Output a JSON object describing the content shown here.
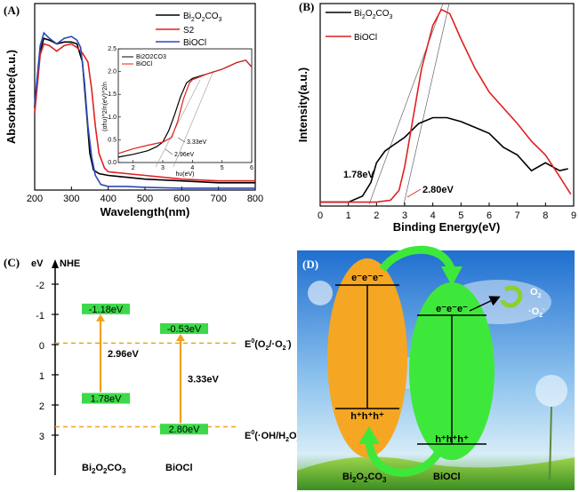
{
  "panels": {
    "A": "(A)",
    "B": "(B)",
    "C": "(C)",
    "D": "(D)"
  },
  "colors": {
    "bi2o2co3": "#000000",
    "s2": "#e02020",
    "biocl": "#2b49b8",
    "band_green": "#3dd94a",
    "dash_orange": "#f0a020",
    "oval_orange": "#f5a623",
    "oval_green": "#3ee83a"
  },
  "chart_data": [
    {
      "id": "A",
      "type": "line",
      "xlabel": "Wavelength(nm)",
      "ylabel": "Absorbance(a.u.)",
      "xlim": [
        200,
        800
      ],
      "xticks": [
        "200",
        "300",
        "400",
        "500",
        "600",
        "700",
        "800"
      ],
      "legend": [
        {
          "label_parts": [
            "Bi",
            "2",
            "O",
            "2",
            "CO",
            "3"
          ],
          "color_key": "bi2o2co3"
        },
        {
          "label": "S2",
          "color_key": "s2"
        },
        {
          "label": "BiOCl",
          "color_key": "biocl"
        }
      ],
      "series": [
        {
          "name": "Bi2O2CO3",
          "x": [
            200,
            215,
            225,
            240,
            260,
            280,
            300,
            315,
            330,
            340,
            350,
            360,
            375,
            400,
            450,
            500,
            600,
            700,
            800
          ],
          "y": [
            0.45,
            0.76,
            0.83,
            0.82,
            0.8,
            0.81,
            0.81,
            0.8,
            0.7,
            0.45,
            0.2,
            0.11,
            0.09,
            0.08,
            0.07,
            0.06,
            0.05,
            0.04,
            0.04
          ]
        },
        {
          "name": "S2",
          "x": [
            200,
            215,
            225,
            240,
            260,
            280,
            300,
            315,
            330,
            345,
            355,
            365,
            375,
            390,
            400,
            450,
            500,
            600,
            700,
            800
          ],
          "y": [
            0.42,
            0.74,
            0.8,
            0.79,
            0.76,
            0.79,
            0.8,
            0.78,
            0.75,
            0.7,
            0.55,
            0.35,
            0.2,
            0.12,
            0.1,
            0.09,
            0.08,
            0.06,
            0.05,
            0.05
          ]
        },
        {
          "name": "BiOCl",
          "x": [
            200,
            215,
            225,
            240,
            260,
            280,
            300,
            315,
            325,
            335,
            345,
            355,
            365,
            380,
            400,
            450,
            500,
            600,
            700,
            800
          ],
          "y": [
            0.47,
            0.79,
            0.86,
            0.83,
            0.8,
            0.83,
            0.84,
            0.82,
            0.78,
            0.6,
            0.35,
            0.18,
            0.08,
            0.03,
            0.02,
            0.02,
            0.015,
            0.01,
            0.01,
            0.01
          ]
        }
      ],
      "inset": {
        "xlabel": "hυ(eV)",
        "ylabel": "(αhυ)^2/n(eV)^2/n",
        "xlim": [
          1.5,
          6
        ],
        "ylim": [
          0,
          2.5
        ],
        "xticks": [
          "2",
          "3",
          "4",
          "5",
          "6"
        ],
        "yticks": [
          "0.0",
          "0.5",
          "1.0",
          "1.5",
          "2.0",
          "2.5"
        ],
        "legend": [
          "Bi2O2CO3",
          "BiOCl"
        ],
        "annotations": [
          "3.33eV",
          "2.96eV"
        ],
        "series": [
          {
            "name": "Bi2O2CO3",
            "x": [
              1.5,
              2.0,
              2.5,
              2.8,
              3.0,
              3.2,
              3.4,
              3.6,
              3.8,
              4.0,
              4.5,
              5.0,
              5.5,
              5.8,
              6.0
            ],
            "y": [
              0.12,
              0.18,
              0.26,
              0.35,
              0.45,
              0.7,
              1.05,
              1.45,
              1.75,
              1.85,
              1.95,
              2.05,
              2.2,
              2.25,
              2.1
            ]
          },
          {
            "name": "BiOCl",
            "x": [
              1.5,
              2.0,
              2.5,
              3.0,
              3.3,
              3.5,
              3.7,
              3.9,
              4.0,
              4.5,
              5.0,
              5.5,
              5.8,
              6.0
            ],
            "y": [
              0.2,
              0.3,
              0.38,
              0.45,
              0.55,
              0.9,
              1.4,
              1.75,
              1.82,
              1.95,
              2.05,
              2.2,
              2.25,
              2.1
            ]
          }
        ]
      }
    },
    {
      "id": "B",
      "type": "line",
      "xlabel": "Binding Energy(eV)",
      "ylabel": "Intensity(a.u.)",
      "xlim": [
        0,
        9
      ],
      "xticks": [
        "0",
        "1",
        "2",
        "3",
        "4",
        "5",
        "6",
        "7",
        "8",
        "9"
      ],
      "legend": [
        {
          "label_parts": [
            "Bi",
            "2",
            "O",
            "2",
            "CO",
            "3"
          ],
          "color_key": "bi2o2co3"
        },
        {
          "label": "BiOCl",
          "color_key": "s2"
        }
      ],
      "annotations": [
        "1.78eV",
        "2.80eV"
      ],
      "series": [
        {
          "name": "Bi2O2CO3",
          "x": [
            0,
            1.0,
            1.5,
            1.8,
            2.0,
            2.3,
            2.6,
            3.0,
            3.5,
            4.0,
            4.5,
            5.0,
            5.5,
            6.0,
            6.5,
            7.0,
            7.5,
            8.0,
            8.5,
            8.8
          ],
          "y": [
            0.02,
            0.02,
            0.05,
            0.12,
            0.22,
            0.28,
            0.31,
            0.35,
            0.42,
            0.45,
            0.45,
            0.43,
            0.4,
            0.37,
            0.3,
            0.26,
            0.18,
            0.22,
            0.18,
            0.19
          ]
        },
        {
          "name": "BiOCl",
          "x": [
            0,
            2.0,
            2.5,
            2.8,
            3.0,
            3.3,
            3.6,
            4.0,
            4.3,
            4.6,
            5.0,
            5.5,
            6.0,
            6.5,
            7.0,
            7.5,
            8.0,
            8.5,
            8.9
          ],
          "y": [
            0.02,
            0.02,
            0.03,
            0.08,
            0.2,
            0.45,
            0.7,
            0.92,
            1.0,
            0.98,
            0.85,
            0.7,
            0.58,
            0.5,
            0.42,
            0.33,
            0.26,
            0.15,
            0.06
          ]
        }
      ]
    },
    {
      "id": "C",
      "type": "diagram",
      "yaxis_label": "eV",
      "yaxis_ref": "NHE",
      "yticks": [
        "-2",
        "-1",
        "0",
        "1",
        "2",
        "3"
      ],
      "materials": [
        {
          "name_parts": [
            "Bi",
            "2",
            "O",
            "2",
            "CO",
            "3"
          ],
          "cb": "-1.18eV",
          "vb": "1.78eV",
          "gap": "2.96eV",
          "cb_value": -1.18,
          "vb_value": 1.78
        },
        {
          "name": "BiOCl",
          "cb": "-0.53eV",
          "vb": "2.80eV",
          "gap": "3.33eV",
          "cb_value": -0.53,
          "vb_value": 2.8
        }
      ],
      "ref_lines": [
        {
          "label_parts": [
            "E",
            "0",
            "(O",
            "2",
            "/·O",
            "2",
            "-",
            ")"
          ],
          "value": -0.046
        },
        {
          "label_parts": [
            "E",
            "0",
            "(·OH/H",
            "2",
            "O)"
          ],
          "value": 2.72
        }
      ]
    }
  ],
  "panel_d": {
    "electrons": "e⁻e⁻e⁻",
    "holes": "h⁺h⁺h⁺",
    "o2": "O",
    "o2_sub": "2",
    "o2_radical": "·O",
    "o2_radical_sub": "2",
    "o2_radical_sup": "-",
    "bi2o2co3_parts": [
      "Bi",
      "2",
      "O",
      "2",
      "CO",
      "3"
    ],
    "biocl": "BiOCl"
  }
}
